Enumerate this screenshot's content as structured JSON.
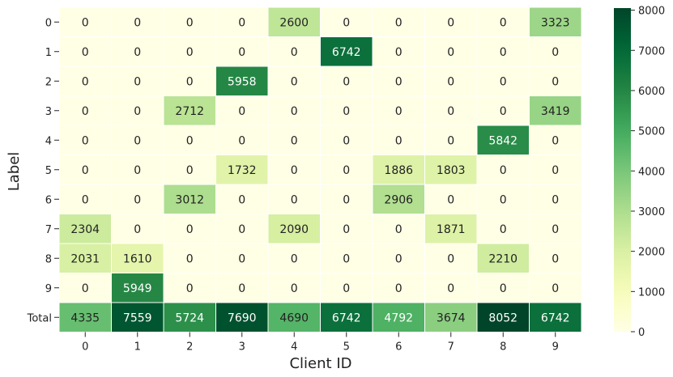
{
  "chart_data": {
    "type": "heatmap",
    "title": "",
    "xlabel": "Client ID",
    "ylabel": "Label",
    "x_categories": [
      "0",
      "1",
      "2",
      "3",
      "4",
      "5",
      "6",
      "7",
      "8",
      "9"
    ],
    "y_categories": [
      "0",
      "1",
      "2",
      "3",
      "4",
      "5",
      "6",
      "7",
      "8",
      "9",
      "Total"
    ],
    "values": [
      [
        0,
        0,
        0,
        0,
        2600,
        0,
        0,
        0,
        0,
        3323
      ],
      [
        0,
        0,
        0,
        0,
        0,
        6742,
        0,
        0,
        0,
        0
      ],
      [
        0,
        0,
        0,
        5958,
        0,
        0,
        0,
        0,
        0,
        0
      ],
      [
        0,
        0,
        2712,
        0,
        0,
        0,
        0,
        0,
        0,
        3419
      ],
      [
        0,
        0,
        0,
        0,
        0,
        0,
        0,
        0,
        5842,
        0
      ],
      [
        0,
        0,
        0,
        1732,
        0,
        0,
        1886,
        1803,
        0,
        0
      ],
      [
        0,
        0,
        3012,
        0,
        0,
        0,
        2906,
        0,
        0,
        0
      ],
      [
        2304,
        0,
        0,
        0,
        2090,
        0,
        0,
        1871,
        0,
        0
      ],
      [
        2031,
        1610,
        0,
        0,
        0,
        0,
        0,
        0,
        2210,
        0
      ],
      [
        0,
        5949,
        0,
        0,
        0,
        0,
        0,
        0,
        0,
        0
      ],
      [
        4335,
        7559,
        5724,
        7690,
        4690,
        6742,
        4792,
        3674,
        8052,
        6742
      ]
    ],
    "colorbar": {
      "min": 0,
      "max": 8052,
      "ticks": [
        "0",
        "1000",
        "2000",
        "3000",
        "4000",
        "5000",
        "6000",
        "7000",
        "8000"
      ],
      "colormap": "YlGn"
    },
    "annotations": "cell values shown",
    "grid": false,
    "legend": "colorbar-right"
  }
}
